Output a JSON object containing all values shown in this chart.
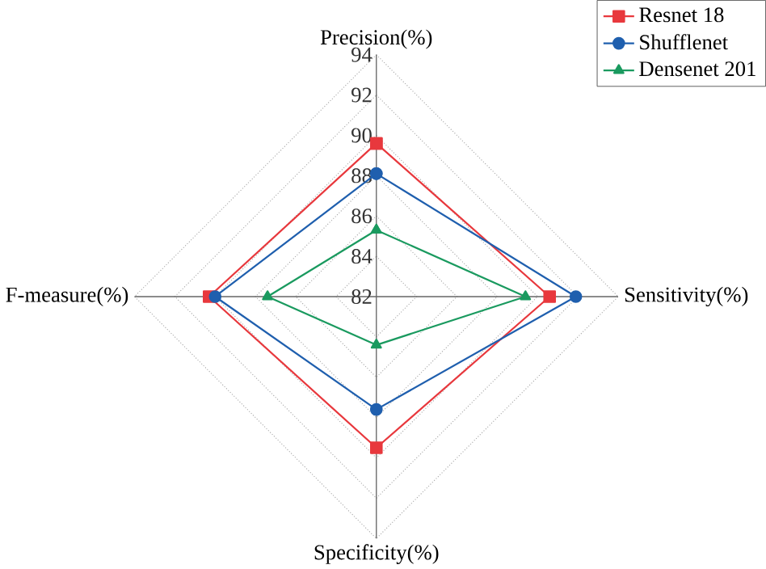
{
  "chart_data": {
    "type": "radar",
    "categories": [
      "Precision(%)",
      "Sensitivity(%)",
      "Specificity(%)",
      "F-measure(%)"
    ],
    "series": [
      {
        "name": "Resnet 18",
        "color": "#e8383d",
        "marker": "square",
        "values": [
          89.6,
          90.6,
          89.5,
          90.3
        ]
      },
      {
        "name": "Shufflenet",
        "color": "#1f5fae",
        "marker": "circle",
        "values": [
          88.1,
          91.9,
          87.6,
          90.0
        ]
      },
      {
        "name": "Densenet 201",
        "color": "#1a9a5f",
        "marker": "triangle",
        "values": [
          85.3,
          89.4,
          84.4,
          87.4
        ]
      }
    ],
    "ylim": [
      82,
      94
    ],
    "yticks": [
      82,
      84,
      86,
      88,
      90,
      92,
      94
    ],
    "grid": true,
    "legend": "top right"
  }
}
